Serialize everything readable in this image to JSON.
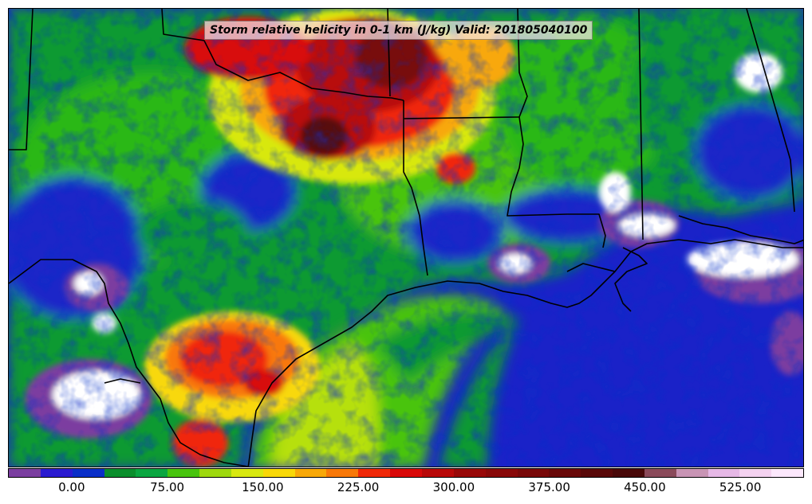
{
  "title": "Storm relative helicity in 0-1 km (J/kg) Valid: 201805040100",
  "colorbar": {
    "units": "J/kg",
    "min": -50,
    "max": 575,
    "step": 25,
    "colors": [
      "#7b3ea0",
      "#2a1ad0",
      "#0a2ec8",
      "#0a8e2c",
      "#0aa640",
      "#48c40e",
      "#9ed80e",
      "#d8e810",
      "#f8d808",
      "#f8a808",
      "#f87808",
      "#f02808",
      "#d80808",
      "#b80808",
      "#980808",
      "#880808",
      "#780808",
      "#680808",
      "#580808",
      "#480808",
      "#8a4a5a",
      "#c894b4",
      "#e6b8e6",
      "#f4d2f0",
      "#fce8fc"
    ],
    "tick_labels": [
      "0.00",
      "75.00",
      "150.00",
      "225.00",
      "300.00",
      "375.00",
      "450.00",
      "525.00"
    ],
    "tick_values": [
      0,
      75,
      150,
      225,
      300,
      375,
      450,
      525
    ]
  }
}
